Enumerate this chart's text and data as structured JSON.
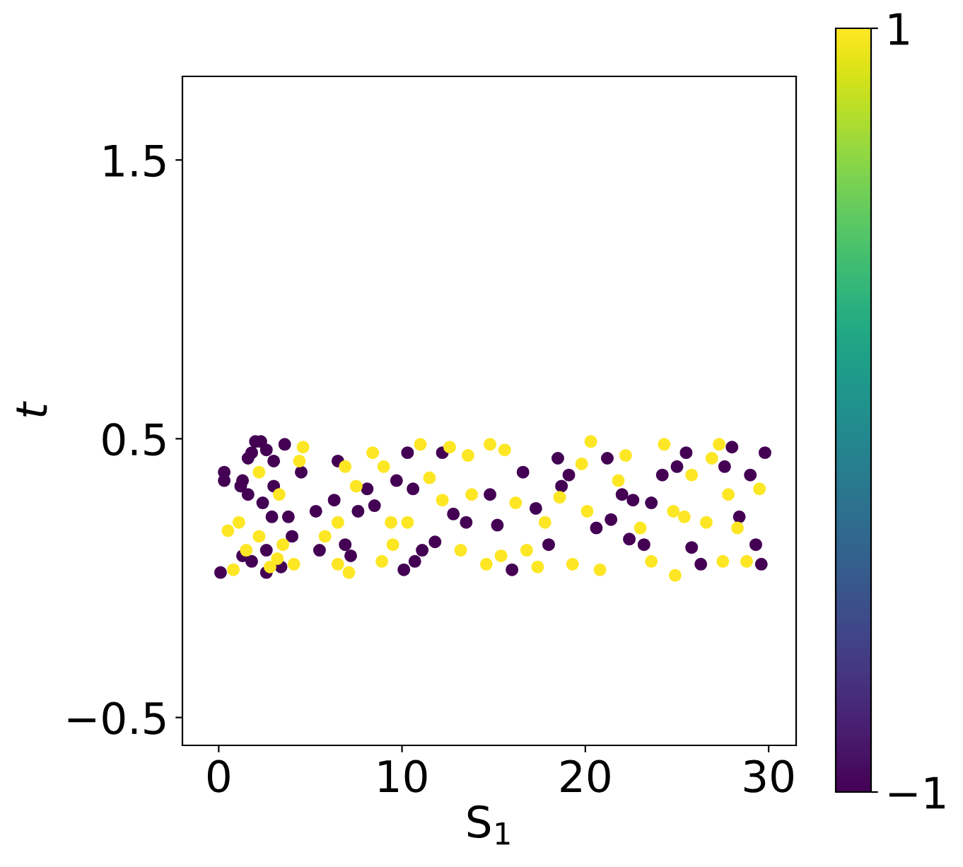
{
  "chart_data": {
    "type": "scatter",
    "xlabel": "S$_{1}$",
    "ylabel": "t",
    "xlim": [
      -1.98,
      31.5
    ],
    "ylim": [
      -0.6,
      1.8
    ],
    "xticks": [
      0,
      10,
      20,
      30
    ],
    "yticks": [
      -0.5,
      0.5,
      1.5
    ],
    "clim": [
      -1,
      1
    ],
    "cticks": [
      -1,
      1
    ],
    "grid": false,
    "legend": false,
    "marker": "circle",
    "x": [
      0.1,
      0.3,
      0.3,
      1.3,
      1.6,
      1.8,
      2,
      2.3,
      2.6,
      3,
      3.6,
      1.2,
      1.6,
      2.4,
      2.9,
      3.8,
      3,
      4.5,
      2.6,
      1.3,
      1.8,
      3.4,
      2.6,
      4,
      5.3,
      6.5,
      7.6,
      8.1,
      8.5,
      6.9,
      7.2,
      5.5,
      6.3,
      10.3,
      10.6,
      10.1,
      11.1,
      11.8,
      12.2,
      12.8,
      13.5,
      14.8,
      15.2,
      16,
      16.6,
      17.3,
      18.5,
      18.7,
      19.1,
      18,
      20.6,
      21.2,
      22,
      22.6,
      23.2,
      23.6,
      24.2,
      21.4,
      25,
      25.5,
      25.8,
      26.3,
      27.6,
      28.4,
      29,
      29.3,
      29.6,
      29.8,
      28,
      22.4,
      9.7,
      10.7,
      0.5,
      0.8,
      1.5,
      2.2,
      2.8,
      3.5,
      4.1,
      4.6,
      4.4,
      2.2,
      3.3,
      5.8,
      6.5,
      6.9,
      7.5,
      8.4,
      9,
      9.4,
      8.9,
      7.1,
      6.5,
      11,
      11.5,
      10.3,
      12.2,
      12.6,
      13.2,
      13.8,
      14.6,
      14.8,
      15.6,
      15.4,
      16.2,
      16.8,
      17.4,
      17.8,
      18.6,
      19.3,
      19.8,
      20.3,
      20.1,
      20.8,
      21.8,
      22.2,
      23,
      23.6,
      24.3,
      24.8,
      25.4,
      25.8,
      26.6,
      27.3,
      27.8,
      28.3,
      28.8,
      29.5,
      27.5,
      26.9,
      24.9,
      13.6,
      9.5,
      3.2,
      1.1
    ],
    "values": [
      0.02,
      0.38,
      0.35,
      0.35,
      0.43,
      0.45,
      0.49,
      0.49,
      0.46,
      0.42,
      0.48,
      0.33,
      0.3,
      0.27,
      0.22,
      0.22,
      0.33,
      0.38,
      0.1,
      0.08,
      0.06,
      0.04,
      0.02,
      0.15,
      0.24,
      0.42,
      0.24,
      0.32,
      0.26,
      0.12,
      0.08,
      0.1,
      0.28,
      0.45,
      0.32,
      0.03,
      0.1,
      0.13,
      0.45,
      0.23,
      0.2,
      0.3,
      0.19,
      0.03,
      0.38,
      0.25,
      0.43,
      0.33,
      0.37,
      0.12,
      0.18,
      0.43,
      0.3,
      0.28,
      0.12,
      0.27,
      0.37,
      0.21,
      0.4,
      0.45,
      0.11,
      0.05,
      0.4,
      0.22,
      0.37,
      0.12,
      0.05,
      0.45,
      0.47,
      0.14,
      0.35,
      0.06,
      0.17,
      0.03,
      0.1,
      0.15,
      0.04,
      0.12,
      0.05,
      0.47,
      0.42,
      0.38,
      0.3,
      0.15,
      0.2,
      0.4,
      0.33,
      0.45,
      0.4,
      0.2,
      0.06,
      0.02,
      0.05,
      0.48,
      0.36,
      0.2,
      0.28,
      0.47,
      0.1,
      0.3,
      0.05,
      0.48,
      0.46,
      0.08,
      0.27,
      0.1,
      0.04,
      0.2,
      0.29,
      0.05,
      0.41,
      0.49,
      0.24,
      0.03,
      0.35,
      0.44,
      0.18,
      0.06,
      0.48,
      0.24,
      0.22,
      0.37,
      0.2,
      0.48,
      0.3,
      0.18,
      0.06,
      0.32,
      0.06,
      0.43,
      0.01,
      0.44,
      0.12,
      0.07,
      0.2
    ],
    "cvalues": [
      -1,
      -1,
      -1,
      -1,
      -1,
      -1,
      -1,
      -1,
      -1,
      -1,
      -1,
      -1,
      -1,
      -1,
      -1,
      -1,
      -1,
      -1,
      -1,
      -1,
      -1,
      -1,
      -1,
      -1,
      -1,
      -1,
      -1,
      -1,
      -1,
      -1,
      -1,
      -1,
      -1,
      -1,
      -1,
      -1,
      -1,
      -1,
      -1,
      -1,
      -1,
      -1,
      -1,
      -1,
      -1,
      -1,
      -1,
      -1,
      -1,
      -1,
      -1,
      -1,
      -1,
      -1,
      -1,
      -1,
      -1,
      -1,
      -1,
      -1,
      -1,
      -1,
      -1,
      -1,
      -1,
      -1,
      -1,
      -1,
      -1,
      -1,
      -1,
      -1,
      1,
      1,
      1,
      1,
      1,
      1,
      1,
      1,
      1,
      1,
      1,
      1,
      1,
      1,
      1,
      1,
      1,
      1,
      1,
      1,
      1,
      1,
      1,
      1,
      1,
      1,
      1,
      1,
      1,
      1,
      1,
      1,
      1,
      1,
      1,
      1,
      1,
      1,
      1,
      1,
      1,
      1,
      1,
      1,
      1,
      1,
      1,
      1,
      1,
      1,
      1,
      1,
      1,
      1,
      1,
      1,
      1,
      1,
      1,
      1,
      1,
      1,
      1
    ]
  }
}
